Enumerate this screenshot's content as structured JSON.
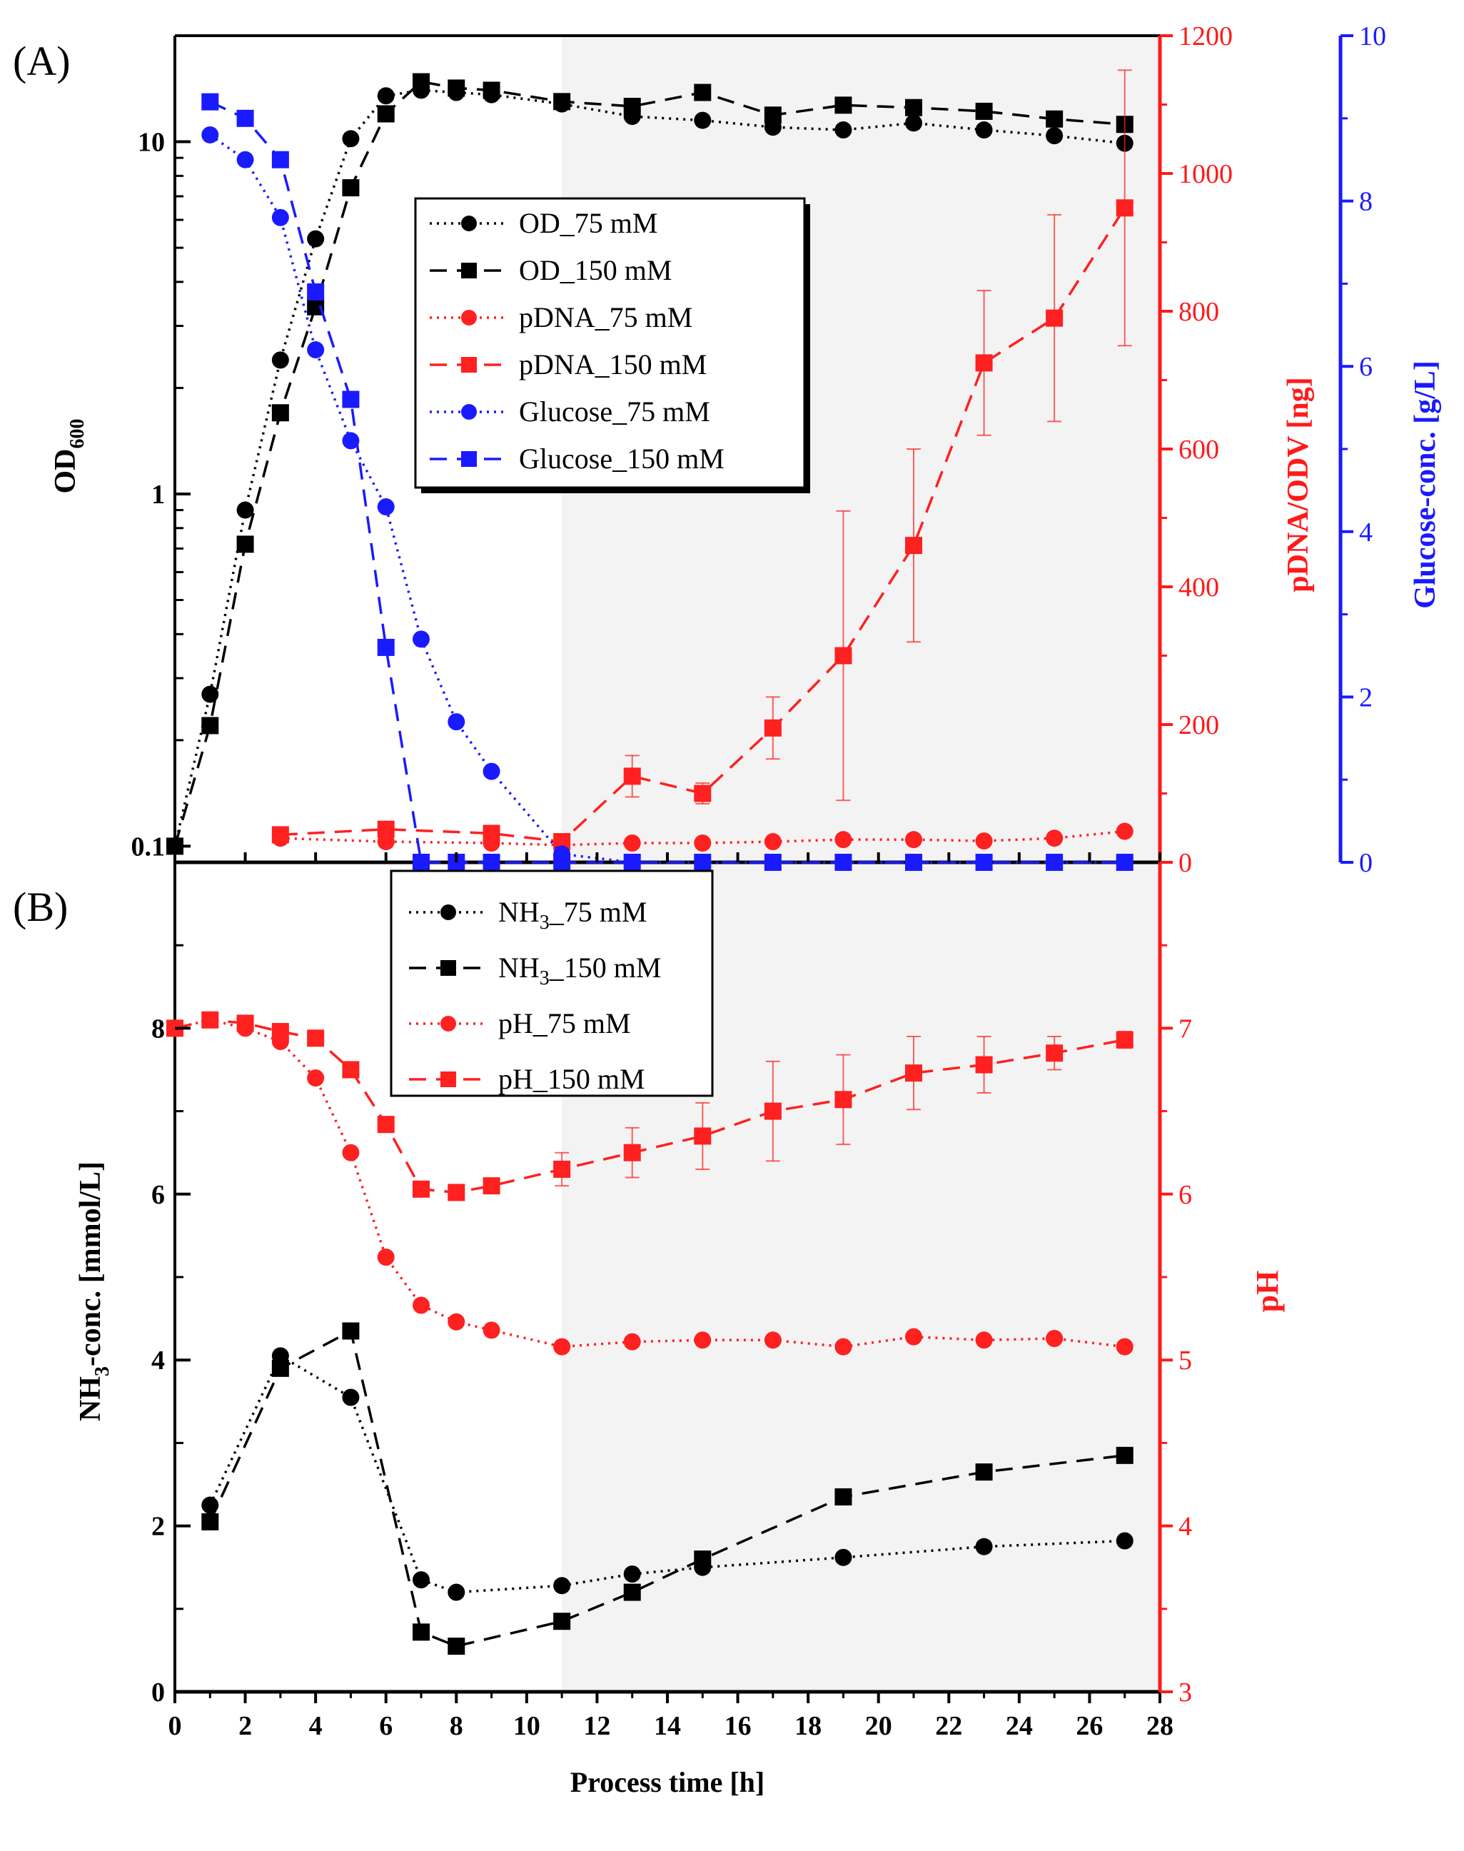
{
  "chart_data": [
    {
      "panel": "(A)",
      "type": "line",
      "title": "",
      "xlabel": "",
      "xlim": [
        0,
        28
      ],
      "xticks": [
        0,
        2,
        4,
        6,
        8,
        10,
        12,
        14,
        16,
        18,
        20,
        22,
        24,
        26,
        28
      ],
      "shaded_from_x": 11,
      "axes": {
        "left": {
          "label": "OD",
          "label_sub": "600",
          "scale": "log",
          "ylim": [
            0.09,
            20
          ],
          "ticks": [
            0.1,
            1,
            10
          ],
          "tick_labels": [
            "0.1",
            "1",
            "10"
          ],
          "color": "#000000"
        },
        "right1": {
          "label": "pDNA/ODV [ng]",
          "scale": "linear",
          "ylim": [
            0,
            1200
          ],
          "ticks": [
            0,
            200,
            400,
            600,
            800,
            1000,
            1200
          ],
          "tick_labels": [
            "0",
            "200",
            "400",
            "600",
            "800",
            "1000",
            "1200"
          ],
          "color": "#ff1a1a"
        },
        "right2": {
          "label": "Glucose-conc. [g/L]",
          "scale": "linear",
          "ylim": [
            0,
            10
          ],
          "ticks": [
            0,
            2,
            4,
            6,
            8,
            10
          ],
          "tick_labels": [
            "0",
            "2",
            "4",
            "6",
            "8",
            "10"
          ],
          "color": "#1a1aff"
        }
      },
      "series": [
        {
          "name": "OD_75 mM",
          "axis": "left",
          "color": "#000000",
          "marker": "circle",
          "line": "dotted",
          "x": [
            0,
            1,
            2,
            3,
            4,
            5,
            6,
            7,
            8,
            9,
            11,
            13,
            15,
            17,
            19,
            21,
            23,
            25,
            27
          ],
          "y": [
            0.1,
            0.27,
            0.9,
            2.4,
            5.3,
            10.2,
            13.5,
            14.0,
            13.8,
            13.6,
            12.8,
            11.8,
            11.5,
            11.0,
            10.8,
            11.3,
            10.8,
            10.4,
            9.9
          ]
        },
        {
          "name": "OD_150 mM",
          "axis": "left",
          "color": "#000000",
          "marker": "square",
          "line": "dashed",
          "x": [
            0,
            1,
            2,
            3,
            4,
            5,
            6,
            7,
            8,
            9,
            11,
            13,
            15,
            17,
            19,
            21,
            23,
            25,
            27
          ],
          "y": [
            0.1,
            0.22,
            0.72,
            1.7,
            3.4,
            7.4,
            12.0,
            14.8,
            14.2,
            14.0,
            13.0,
            12.6,
            13.8,
            11.9,
            12.7,
            12.5,
            12.2,
            11.6,
            11.2
          ]
        },
        {
          "name": "pDNA_75 mM",
          "axis": "right1",
          "color": "#ff2020",
          "marker": "circle",
          "line": "dotted",
          "x": [
            3,
            6,
            9,
            11,
            13,
            15,
            17,
            19,
            21,
            23,
            25,
            27
          ],
          "y": [
            35,
            30,
            28,
            25,
            28,
            28,
            30,
            33,
            33,
            31,
            35,
            45
          ]
        },
        {
          "name": "pDNA_150 mM",
          "axis": "right1",
          "color": "#ff2020",
          "marker": "square",
          "line": "dashed",
          "x": [
            3,
            6,
            9,
            11,
            13,
            15,
            17,
            19,
            21,
            23,
            25,
            27
          ],
          "y": [
            40,
            48,
            42,
            30,
            125,
            100,
            195,
            300,
            460,
            725,
            790,
            950
          ],
          "err": [
            0,
            0,
            0,
            0,
            30,
            15,
            45,
            210,
            140,
            105,
            150,
            200
          ]
        },
        {
          "name": "Glucose_75 mM",
          "axis": "right2",
          "color": "#1a1aff",
          "marker": "circle",
          "line": "dotted",
          "x": [
            1,
            2,
            3,
            4,
            5,
            6,
            7,
            8,
            9,
            11,
            13,
            15,
            17,
            19,
            21,
            23,
            25,
            27
          ],
          "y": [
            8.8,
            8.5,
            7.8,
            6.2,
            5.1,
            4.3,
            2.7,
            1.7,
            1.1,
            0.1,
            0,
            0,
            0,
            0,
            0,
            0,
            0,
            0
          ]
        },
        {
          "name": "Glucose_150 mM",
          "axis": "right2",
          "color": "#1a1aff",
          "marker": "square",
          "line": "dashed",
          "x": [
            1,
            2,
            3,
            4,
            5,
            6,
            7,
            8,
            9,
            11,
            13,
            15,
            17,
            19,
            21,
            23,
            25,
            27
          ],
          "y": [
            9.2,
            9.0,
            8.5,
            6.9,
            5.6,
            2.6,
            0,
            0,
            0,
            0,
            0,
            0,
            0,
            0,
            0,
            0,
            0,
            0
          ]
        }
      ],
      "legend": {
        "position": "center",
        "entries": [
          "OD_75 mM",
          "OD_150 mM",
          "pDNA_75 mM",
          "pDNA_150 mM",
          "Glucose_75 mM",
          "Glucose_150 mM"
        ]
      }
    },
    {
      "panel": "(B)",
      "type": "line",
      "title": "",
      "xlabel": "Process time [h]",
      "xlim": [
        0,
        28
      ],
      "xticks": [
        0,
        2,
        4,
        6,
        8,
        10,
        12,
        14,
        16,
        18,
        20,
        22,
        24,
        26,
        28
      ],
      "xtick_labels": [
        "0",
        "2",
        "4",
        "6",
        "8",
        "10",
        "12",
        "14",
        "16",
        "18",
        "20",
        "22",
        "24",
        "26",
        "28"
      ],
      "shaded_from_x": 11,
      "axes": {
        "left": {
          "label": "NH",
          "label_sub": "3",
          "label_rest": "-conc. [mmol/L]",
          "scale": "linear",
          "ylim": [
            0,
            10
          ],
          "ticks": [
            0,
            2,
            4,
            6,
            8
          ],
          "tick_labels": [
            "0",
            "2",
            "4",
            "6",
            "8"
          ],
          "color": "#000000"
        },
        "right": {
          "label": "pH",
          "scale": "linear",
          "ylim": [
            3,
            8
          ],
          "ticks": [
            3,
            4,
            5,
            6,
            7
          ],
          "tick_labels": [
            "3",
            "4",
            "5",
            "6",
            "7"
          ],
          "color": "#ff1a1a"
        }
      },
      "series": [
        {
          "name": "NH3_75 mM",
          "label_main": "NH",
          "label_sub": "3",
          "label_rest": "_75 mM",
          "axis": "left",
          "color": "#000000",
          "marker": "circle",
          "line": "dotted",
          "x": [
            1,
            3,
            5,
            7,
            8,
            11,
            13,
            15,
            19,
            23,
            27
          ],
          "y": [
            2.25,
            4.05,
            3.55,
            1.35,
            1.2,
            1.28,
            1.42,
            1.5,
            1.62,
            1.75,
            1.82
          ]
        },
        {
          "name": "NH3_150 mM",
          "label_main": "NH",
          "label_sub": "3",
          "label_rest": "_150 mM",
          "axis": "left",
          "color": "#000000",
          "marker": "square",
          "line": "dashed",
          "x": [
            1,
            3,
            5,
            7,
            8,
            11,
            13,
            15,
            19,
            23,
            27
          ],
          "y": [
            2.05,
            3.9,
            4.35,
            0.72,
            0.55,
            0.85,
            1.2,
            1.6,
            2.35,
            2.65,
            2.85
          ]
        },
        {
          "name": "pH_75 mM",
          "label_main": "pH_75 mM",
          "axis": "right",
          "color": "#ff2020",
          "marker": "circle",
          "line": "dotted",
          "x": [
            0,
            1,
            2,
            3,
            4,
            5,
            6,
            7,
            8,
            9,
            11,
            13,
            15,
            17,
            19,
            21,
            23,
            25,
            27
          ],
          "y": [
            7.0,
            7.05,
            7.0,
            6.92,
            6.7,
            6.25,
            5.62,
            5.33,
            5.23,
            5.18,
            5.08,
            5.11,
            5.12,
            5.12,
            5.08,
            5.14,
            5.12,
            5.13,
            5.08
          ]
        },
        {
          "name": "pH_150 mM",
          "label_main": "pH_150 mM",
          "axis": "right",
          "color": "#ff2020",
          "marker": "square",
          "line": "dashed",
          "x": [
            0,
            1,
            2,
            3,
            4,
            5,
            6,
            7,
            8,
            9,
            11,
            13,
            15,
            17,
            19,
            21,
            23,
            25,
            27
          ],
          "y": [
            7.0,
            7.05,
            7.03,
            6.98,
            6.94,
            6.75,
            6.42,
            6.03,
            6.01,
            6.05,
            6.15,
            6.25,
            6.35,
            6.5,
            6.57,
            6.73,
            6.78,
            6.85,
            6.93
          ],
          "err": [
            0,
            0,
            0,
            0,
            0,
            0,
            0,
            0,
            0,
            0,
            0.1,
            0.15,
            0.2,
            0.3,
            0.27,
            0.22,
            0.17,
            0.1,
            0.05
          ]
        }
      ],
      "legend": {
        "position": "top-left",
        "entries": [
          "NH3_75 mM",
          "NH3_150 mM",
          "pH_75 mM",
          "pH_150 mM"
        ]
      }
    }
  ]
}
